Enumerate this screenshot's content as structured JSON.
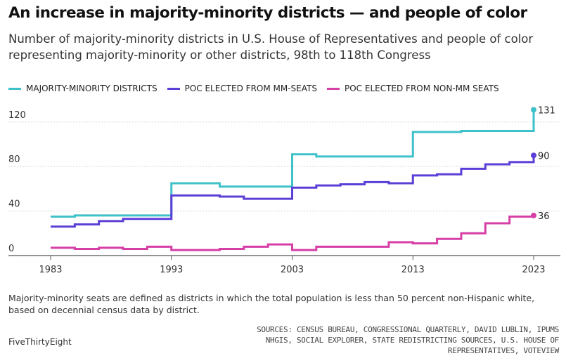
{
  "title": "An increase in majority-minority districts — and people of color",
  "subtitle": "Number of majority-minority districts in U.S. House of Representatives and people of color representing majority-minority or other districts, 98th to 118th Congress",
  "footnote": "Majority-minority seats are defined as districts in which the total population is less than 50 percent non-Hispanic white, based on decennial census data by district.",
  "brand": "FiveThirtyEight",
  "sources": "SOURCES: CENSUS BUREAU, CONGRESSIONAL QUARTERLY, DAVID LUBLIN, IPUMS NHGIS, SOCIAL EXPLORER, STATE REDISTRICTING SOURCES, U.S. HOUSE OF REPRESENTATIVES, VOTEVIEW",
  "colors": {
    "majority_minority": "#3fc1c9",
    "poc_mm": "#5b3fd6",
    "poc_non_mm": "#d63fa6"
  },
  "chart_data": {
    "type": "line",
    "step": true,
    "x": [
      1983,
      1985,
      1987,
      1989,
      1991,
      1993,
      1995,
      1997,
      1999,
      2001,
      2003,
      2005,
      2007,
      2009,
      2011,
      2013,
      2015,
      2017,
      2019,
      2021,
      2023
    ],
    "xticks": [
      1983,
      1993,
      2003,
      2013,
      2023
    ],
    "yticks": [
      0,
      40,
      80,
      120
    ],
    "xlim": [
      1983,
      2023
    ],
    "ylim": [
      0,
      135
    ],
    "series": [
      {
        "key": "majority_minority",
        "name": "MAJORITY-MINORITY DISTRICTS",
        "values": [
          35,
          36,
          36,
          36,
          36,
          65,
          65,
          62,
          62,
          62,
          91,
          89,
          89,
          89,
          89,
          111,
          111,
          112,
          112,
          112,
          131
        ],
        "end_label": "131"
      },
      {
        "key": "poc_mm",
        "name": "POC ELECTED FROM MM-SEATS",
        "values": [
          26,
          28,
          31,
          33,
          33,
          54,
          54,
          53,
          51,
          51,
          61,
          63,
          64,
          66,
          65,
          72,
          73,
          78,
          82,
          84,
          90
        ],
        "end_label": "90"
      },
      {
        "key": "poc_non_mm",
        "name": "POC ELECTED FROM NON-MM SEATS",
        "values": [
          7,
          6,
          7,
          6,
          8,
          5,
          5,
          6,
          8,
          10,
          5,
          8,
          8,
          8,
          12,
          11,
          15,
          20,
          29,
          35,
          36
        ],
        "end_label": "36"
      }
    ]
  }
}
